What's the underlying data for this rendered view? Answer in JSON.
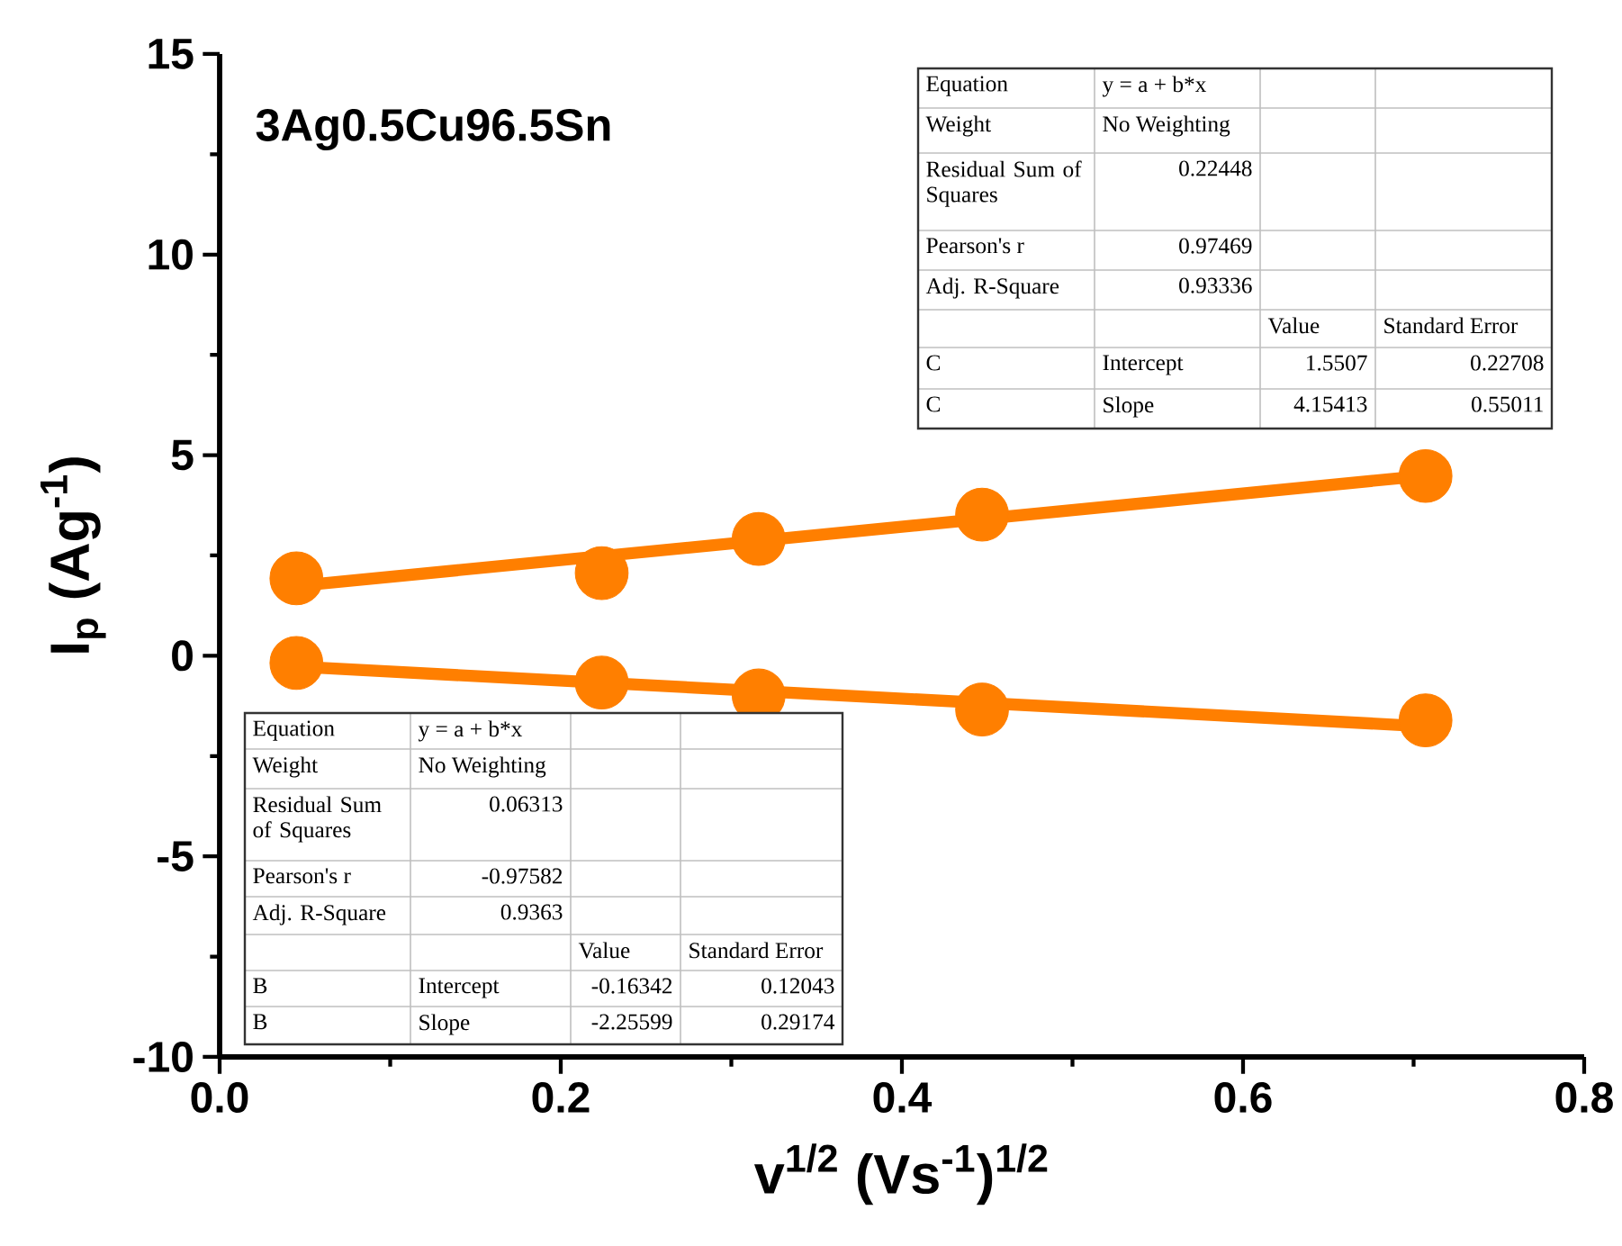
{
  "chart_data": {
    "type": "scatter",
    "title": "3Ag0.5Cu96.5Sn",
    "xlabel": "v$^{1/2}$ (Vs$^{-1}$)$^{1/2}$",
    "ylabel": "I$_{p}$ (Ag$^{-1}$)",
    "xlim": [
      0,
      0.8
    ],
    "ylim": [
      -10,
      15
    ],
    "xticks": [
      {
        "value": 0,
        "label": "0.0"
      },
      {
        "value": 0.2,
        "label": "0.2"
      },
      {
        "value": 0.4,
        "label": "0.4"
      },
      {
        "value": 0.6,
        "label": "0.6"
      },
      {
        "value": 0.8,
        "label": "0.8"
      }
    ],
    "yticks": [
      -10,
      -5,
      0,
      5,
      10,
      15
    ],
    "marker": "circle",
    "series": [
      {
        "type": "line",
        "color": "#ff7f00",
        "x": [
          0.045,
          0.707
        ],
        "values": [
          1.74,
          4.49
        ],
        "marker": "none"
      },
      {
        "type": "line",
        "color": "#ff7f00",
        "x": [
          0.045,
          0.707
        ],
        "values": [
          -0.27,
          -1.76
        ],
        "marker": "none"
      },
      {
        "color": "#ff7f00",
        "x": [
          0.045,
          0.224,
          0.316,
          0.447,
          0.707
        ],
        "values": [
          1.93,
          2.06,
          2.91,
          3.52,
          4.48
        ]
      },
      {
        "color": "#ff7f00",
        "x": [
          0.045,
          0.224,
          0.316,
          0.447,
          0.707
        ],
        "values": [
          -0.18,
          -0.67,
          -0.99,
          -1.34,
          -1.61
        ]
      }
    ],
    "annotations": [
      "Equation",
      "y = a + b*x",
      "Weight",
      "No Weighting",
      "Residual Sum of Squares",
      "0.22448",
      "Pearson's r",
      "0.97469",
      "Adj. R-Square",
      "0.93336",
      "Value",
      "Standard Error",
      "C",
      "Intercept",
      "1.5507",
      "0.22708",
      "C",
      "Slope",
      "4.15413",
      "0.55011",
      "Equation",
      "y = a + b*x",
      "Weight",
      "No Weighting",
      "Residual Sum of Squares",
      "0.06313",
      "Pearson's r",
      "-0.97582",
      "Adj. R-Square",
      "0.9363",
      "Value",
      "Standard Error",
      "B",
      "Intercept",
      "-0.16342",
      "0.12043",
      "B",
      "Slope",
      "-2.25599",
      "0.29174"
    ]
  }
}
